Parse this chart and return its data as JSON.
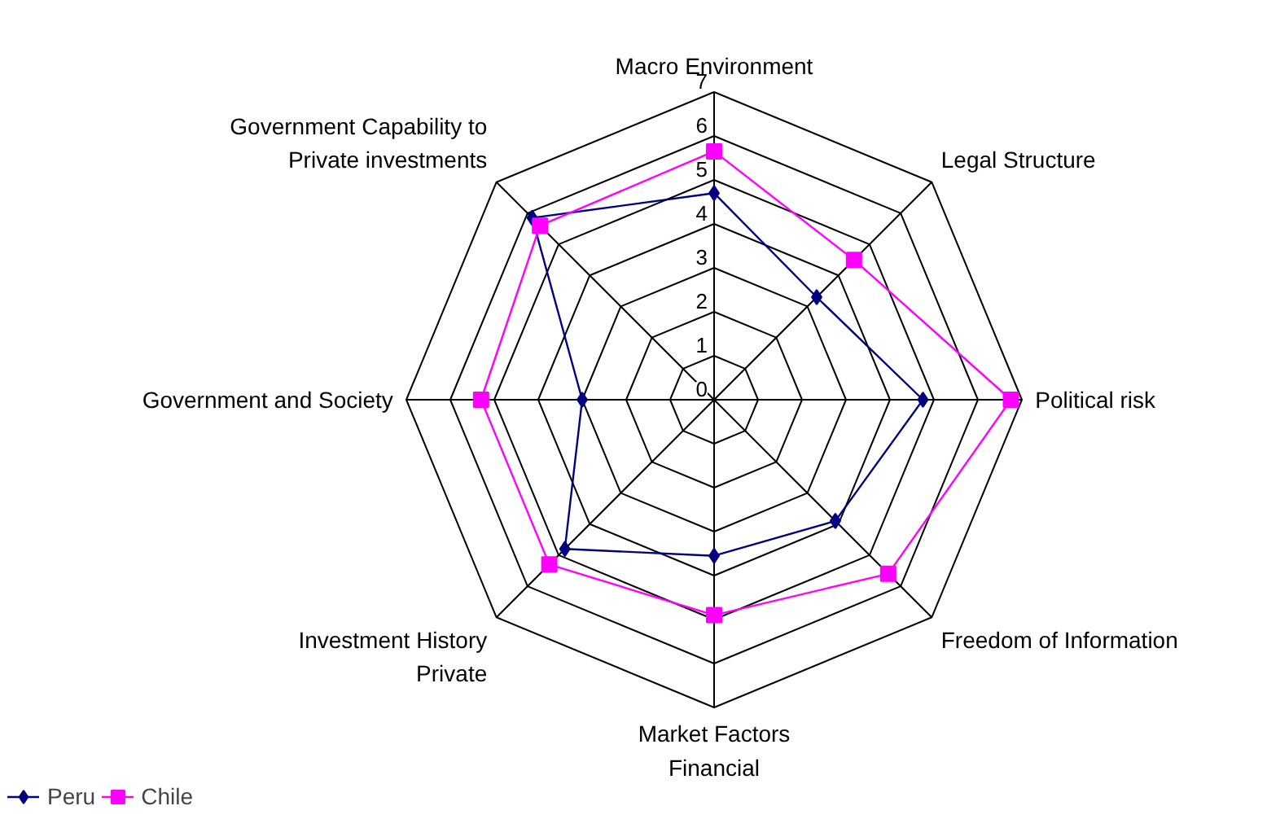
{
  "chart_data": {
    "type": "radar",
    "categories": [
      "Macro Environment",
      "Legal Structure",
      "Political risk",
      "Freedom of Information",
      "Market Factors\nFinancial",
      "Investment History\nPrivate",
      "Government and Society",
      "Government Capability to\nPrivate investments"
    ],
    "ylim": [
      0,
      7
    ],
    "yticks": [
      0,
      1,
      2,
      3,
      4,
      5,
      6,
      7
    ],
    "grid": true,
    "legend": "bottom left",
    "series": [
      {
        "name": "Peru",
        "color": "#000080",
        "marker": "diamond",
        "values": [
          4.7,
          3.3,
          4.75,
          3.9,
          3.55,
          4.8,
          3.0,
          5.85
        ]
      },
      {
        "name": "Chile",
        "color": "#ff00ff",
        "marker": "square",
        "values": [
          5.65,
          4.5,
          6.75,
          5.6,
          4.9,
          5.3,
          5.3,
          5.6
        ]
      }
    ]
  }
}
